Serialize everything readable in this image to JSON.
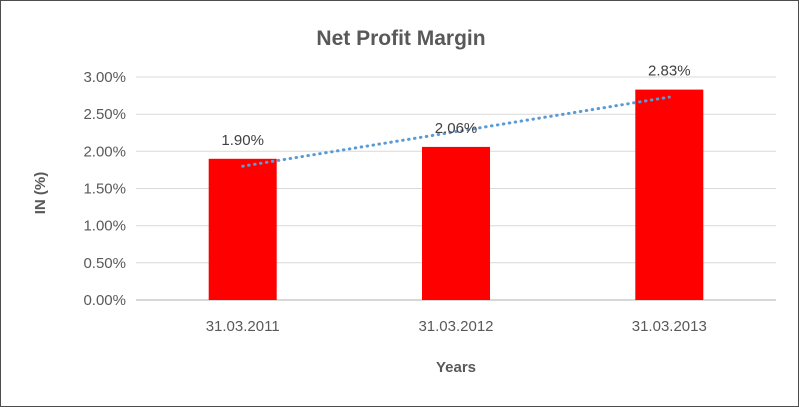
{
  "window": {
    "background": "#FFFFFF",
    "frame_border_color": "#4D4D4D"
  },
  "chart_data": {
    "type": "bar",
    "title": "Net Profit Margin",
    "categories": [
      "31.03.2011",
      "31.03.2012",
      "31.03.2013"
    ],
    "series": [
      {
        "name": "Net Profit Margin",
        "values": [
          1.9,
          2.06,
          2.83
        ]
      }
    ],
    "data_labels": [
      "1.90%",
      "2.06%",
      "2.83%"
    ],
    "xlabel": "Years",
    "ylabel": "IN (%)",
    "ylim": [
      0,
      3
    ],
    "ytick_step": 0.5,
    "yticks": [
      {
        "value": 0,
        "label": "0.00%"
      },
      {
        "value": 0.5,
        "label": "0.50%"
      },
      {
        "value": 1,
        "label": "1.00%"
      },
      {
        "value": 1.5,
        "label": "1.50%"
      },
      {
        "value": 2,
        "label": "2.00%"
      },
      {
        "value": 2.5,
        "label": "2.50%"
      },
      {
        "value": 3,
        "label": "3.00%"
      }
    ],
    "grid": true,
    "legend": "none",
    "trendline": {
      "type": "linear",
      "style": "dotted",
      "start_value": 1.8,
      "end_value": 2.73
    },
    "colors": {
      "bar": "#FF0000",
      "trendline": "#5B9BD5",
      "gridline": "#D9D9D9",
      "axis_line": "#BFBFBF",
      "title_text": "#595959",
      "axis_text": "#595959",
      "data_label_text": "#404040"
    }
  }
}
